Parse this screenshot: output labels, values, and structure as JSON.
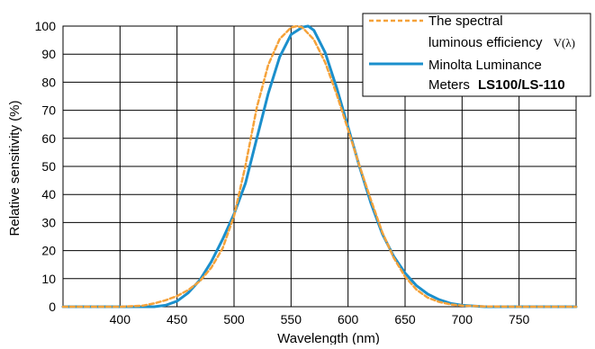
{
  "chart_data": {
    "type": "line",
    "xlabel": "Wavelength (nm)",
    "ylabel": "Relative sensitivity (%)",
    "xlim": [
      350,
      800
    ],
    "ylim": [
      0,
      100
    ],
    "x_ticks": [
      400,
      450,
      500,
      550,
      600,
      650,
      700,
      750
    ],
    "y_ticks": [
      0,
      10,
      20,
      30,
      40,
      50,
      60,
      70,
      80,
      90,
      100
    ],
    "grid": true,
    "legend_position": "top-right",
    "series": [
      {
        "name_line1": "The spectral",
        "name_line2": "luminous efficiency",
        "name_symbol": "V(λ)",
        "color": "#f5a23a",
        "style": "dashed",
        "x": [
          350,
          400,
          420,
          430,
          440,
          450,
          460,
          470,
          480,
          490,
          500,
          510,
          520,
          530,
          540,
          550,
          555,
          560,
          570,
          580,
          590,
          600,
          610,
          620,
          630,
          640,
          650,
          660,
          670,
          680,
          690,
          700,
          720,
          750,
          800
        ],
        "y": [
          0,
          0,
          0.4,
          1.2,
          2.3,
          3.8,
          6,
          9.1,
          13.9,
          20.8,
          32.3,
          50.3,
          71,
          86.2,
          95.4,
          99.5,
          100,
          99.5,
          95.2,
          87,
          75.7,
          63.1,
          50.3,
          38.1,
          26.5,
          17.5,
          10.7,
          6.1,
          3.2,
          1.7,
          0.8,
          0.4,
          0.1,
          0,
          0
        ]
      },
      {
        "name_line1": "Minolta Luminance",
        "name_line2": "Meters",
        "name_bold": "LS100/LS-110",
        "color": "#1b8fcc",
        "style": "solid",
        "x": [
          350,
          400,
          430,
          440,
          450,
          460,
          470,
          480,
          490,
          500,
          510,
          520,
          530,
          540,
          550,
          560,
          565,
          570,
          580,
          590,
          600,
          610,
          620,
          630,
          640,
          650,
          660,
          670,
          680,
          690,
          700,
          720,
          750,
          800
        ],
        "y": [
          0,
          0,
          0,
          0.5,
          2,
          5,
          9.5,
          16,
          24,
          33,
          44,
          60,
          76,
          89,
          97,
          99.6,
          100,
          98.5,
          90.5,
          78,
          64,
          50,
          37,
          26,
          18,
          12,
          7.5,
          4.5,
          2.5,
          1.2,
          0.5,
          0,
          0,
          0
        ]
      }
    ]
  }
}
